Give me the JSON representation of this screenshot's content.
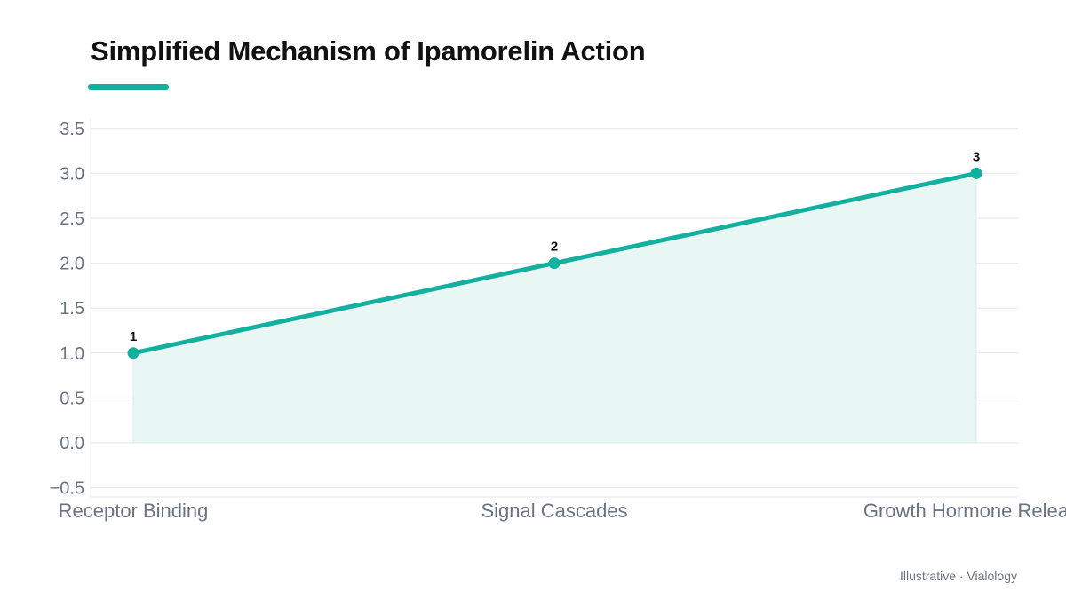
{
  "title": "Simplified Mechanism of Ipamorelin Action",
  "footer": "Illustrative · Vialology",
  "colors": {
    "accent": "#14b09f",
    "area_fill": "#e9f7f4",
    "grid": "#e5e7eb",
    "tick_text": "#6b7280",
    "title_text": "#111111"
  },
  "chart_data": {
    "type": "line",
    "categories": [
      "Receptor Binding",
      "Signal Cascades",
      "Growth Hormone Release"
    ],
    "values": [
      1,
      2,
      3
    ],
    "data_labels": [
      "1",
      "2",
      "3"
    ],
    "fill_area": true,
    "ylim": [
      -0.5,
      3.5
    ],
    "y_ticks": [
      "−0.5",
      "0.0",
      "0.5",
      "1.0",
      "1.5",
      "2.0",
      "2.5",
      "3.0",
      "3.5"
    ],
    "grid": true,
    "title": "Simplified Mechanism of Ipamorelin Action",
    "xlabel": "",
    "ylabel": ""
  }
}
